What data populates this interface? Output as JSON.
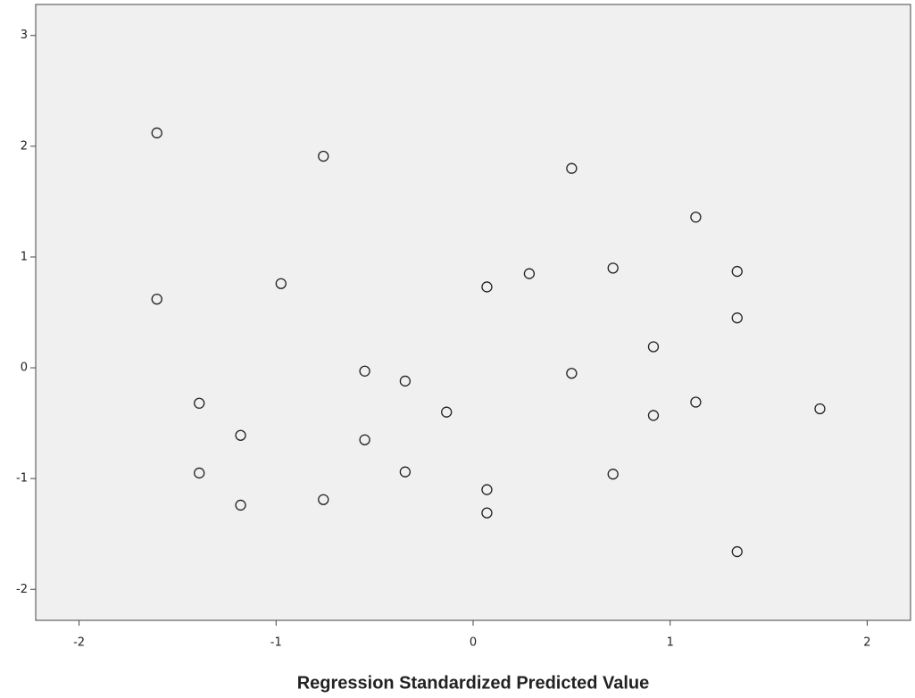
{
  "chart_data": {
    "type": "scatter",
    "x_label": "Regression Standardized Predicted Value",
    "x": [
      -1.605,
      -1.605,
      -1.39,
      -1.39,
      -1.18,
      -1.18,
      -0.76,
      -0.76,
      -0.975,
      -0.55,
      -0.55,
      -0.345,
      -0.345,
      -0.135,
      0.07,
      0.07,
      0.07,
      0.285,
      0.5,
      0.5,
      0.71,
      0.71,
      0.915,
      0.915,
      1.13,
      1.13,
      1.34,
      1.34,
      1.34,
      1.76
    ],
    "y": [
      2.12,
      0.62,
      -0.32,
      -0.95,
      -0.61,
      -1.24,
      1.91,
      -1.19,
      0.76,
      -0.03,
      -0.65,
      -0.12,
      -0.94,
      -0.4,
      0.73,
      -1.1,
      -1.31,
      0.85,
      1.8,
      -0.05,
      0.9,
      -0.96,
      0.19,
      -0.43,
      1.36,
      -0.31,
      0.87,
      0.45,
      -1.66,
      -0.37
    ],
    "color": "#222222",
    "xlim": [
      -2.22,
      2.22
    ],
    "ylim": [
      -2.28,
      3.28
    ],
    "xticks": [
      -2,
      -1,
      0,
      1,
      2
    ],
    "yticks": [
      -2,
      -1,
      0,
      1,
      2,
      3
    ]
  }
}
